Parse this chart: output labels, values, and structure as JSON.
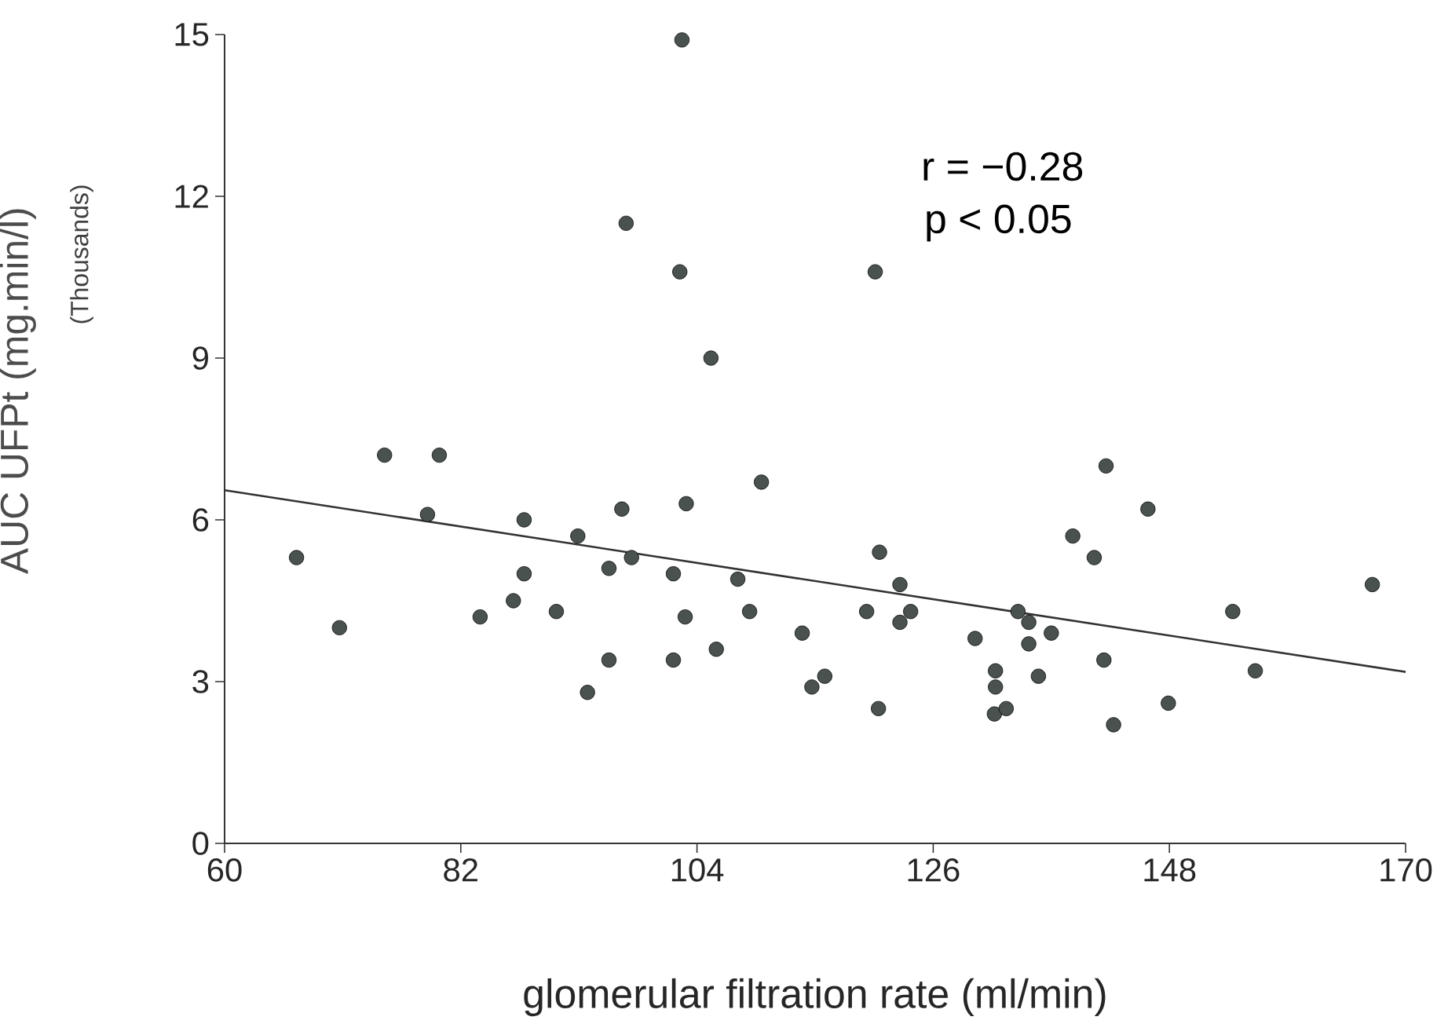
{
  "chart_data": {
    "type": "scatter",
    "xlabel": "glomerular filtration rate (ml/min)",
    "ylabel": "AUC UFPt (mg.min/l)",
    "annotations": [
      "r = −0.28",
      "p < 0.05",
      "(Thousands)"
    ],
    "xlim": [
      60,
      170
    ],
    "xticks": [
      60,
      82,
      104,
      126,
      148,
      170
    ],
    "ylim": [
      0,
      15
    ],
    "yticks": [
      0,
      3,
      6,
      9,
      12,
      15
    ],
    "series": [
      {
        "marker": "circle",
        "color": "#4a5250",
        "x": [
          66.7,
          70.7,
          74.9,
          78.9,
          80.0,
          83.8,
          86.9,
          87.9,
          87.9,
          90.9,
          92.9,
          93.8,
          95.8,
          95.8,
          97.0,
          97.4,
          97.9,
          101.8,
          101.8,
          102.4,
          102.6,
          102.9,
          103.0,
          105.3,
          105.8,
          107.8,
          108.9,
          110.0,
          113.8,
          114.7,
          115.9,
          120.6,
          120.9,
          121.0,
          119.8,
          122.9,
          122.9,
          123.9,
          129.9,
          131.8,
          131.8,
          131.7,
          132.8,
          133.9,
          134.9,
          134.9,
          135.8,
          137.0,
          139.0,
          141.0,
          142.1,
          141.9,
          142.8,
          146.0,
          147.9,
          153.9,
          156.0,
          166.9
        ],
        "values": [
          5.3,
          4.0,
          7.2,
          6.1,
          7.2,
          4.2,
          4.5,
          6.0,
          5.0,
          4.3,
          5.7,
          2.8,
          5.1,
          3.4,
          6.2,
          11.5,
          5.3,
          5.0,
          3.4,
          10.6,
          14.9,
          4.2,
          6.3,
          9.0,
          3.6,
          4.9,
          4.3,
          6.7,
          3.9,
          2.9,
          3.1,
          10.6,
          2.5,
          5.4,
          4.3,
          4.8,
          4.1,
          4.3,
          3.8,
          3.2,
          2.9,
          2.4,
          2.5,
          4.3,
          4.1,
          3.7,
          3.1,
          3.9,
          5.7,
          5.3,
          7.0,
          3.4,
          2.2,
          6.2,
          2.6,
          4.3,
          3.2,
          4.8
        ]
      },
      {
        "type": "line",
        "marker": "none",
        "color": "#333333",
        "x": [
          60,
          170
        ],
        "values": [
          6.55,
          3.18
        ]
      }
    ]
  }
}
